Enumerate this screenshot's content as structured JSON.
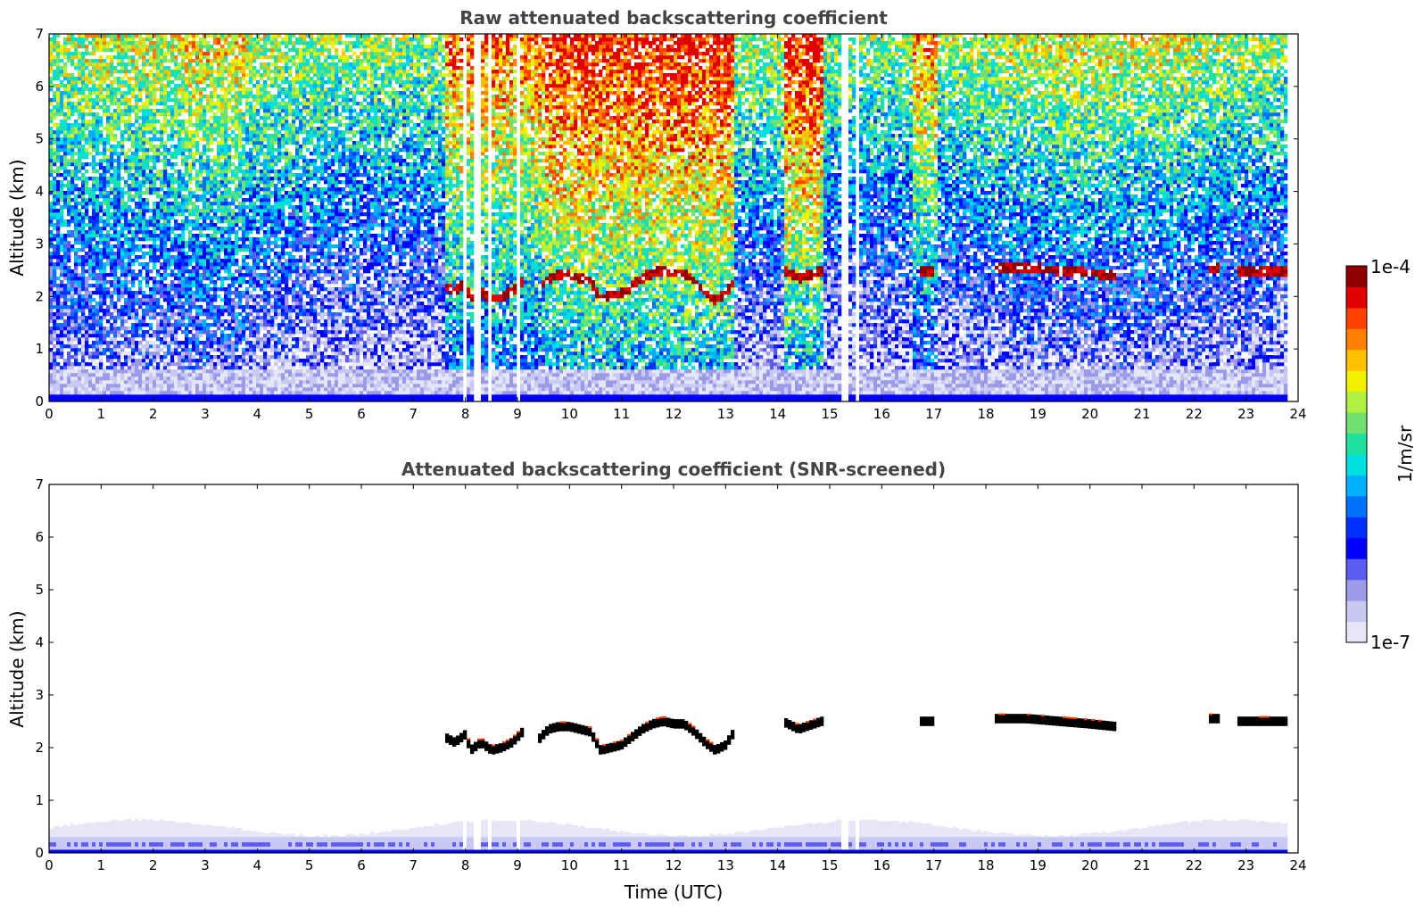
{
  "chart_data": [
    {
      "type": "heatmap",
      "title": "Raw attenuated backscattering coefficient",
      "xlabel": "",
      "ylabel": "Altitude (km)",
      "xlim": [
        0,
        24
      ],
      "ylim": [
        0,
        7
      ],
      "xticks": [
        "0",
        "1",
        "2",
        "3",
        "4",
        "5",
        "6",
        "7",
        "8",
        "9",
        "10",
        "11",
        "12",
        "13",
        "14",
        "15",
        "16",
        "17",
        "18",
        "19",
        "20",
        "21",
        "22",
        "23",
        "24"
      ],
      "yticks": [
        "0",
        "1",
        "2",
        "3",
        "4",
        "5",
        "6",
        "7"
      ],
      "data_end_hour": 23.8,
      "gaps_hours": [
        [
          7.72,
          7.78
        ],
        [
          7.95,
          8.0
        ],
        [
          8.15,
          8.28
        ],
        [
          8.4,
          8.53
        ],
        [
          9.0,
          9.05
        ],
        [
          14.85,
          14.9
        ],
        [
          15.2,
          15.35
        ],
        [
          15.5,
          15.6
        ]
      ],
      "cloud_layer": {
        "segments": [
          {
            "x": [
              7.6,
              7.8,
              8.0,
              8.1,
              8.3,
              8.5,
              8.7,
              8.9,
              9.1
            ],
            "y": [
              2.2,
              2.1,
              2.25,
              1.95,
              2.1,
              1.95,
              2.0,
              2.1,
              2.3
            ]
          },
          {
            "x": [
              9.4,
              9.6,
              9.8,
              10.0,
              10.2,
              10.4,
              10.6,
              10.8,
              11.0,
              11.2,
              11.4,
              11.6,
              11.8,
              12.0,
              12.2,
              12.4,
              12.6,
              12.8,
              13.0,
              13.2
            ],
            "y": [
              2.15,
              2.35,
              2.4,
              2.4,
              2.35,
              2.3,
              1.95,
              2.0,
              2.05,
              2.2,
              2.35,
              2.45,
              2.5,
              2.45,
              2.45,
              2.3,
              2.1,
              1.95,
              2.05,
              2.35
            ]
          },
          {
            "x": [
              14.1,
              14.4,
              14.7,
              14.85
            ],
            "y": [
              2.5,
              2.35,
              2.45,
              2.5
            ]
          },
          {
            "x": [
              16.7,
              17.0
            ],
            "y": [
              2.5,
              2.5
            ]
          },
          {
            "x": [
              18.2,
              18.8,
              19.4,
              20.0,
              20.5
            ],
            "y": [
              2.55,
              2.55,
              2.5,
              2.45,
              2.4
            ]
          },
          {
            "x": [
              22.3,
              22.5
            ],
            "y": [
              2.55,
              2.55
            ]
          },
          {
            "x": [
              22.8,
              23.8
            ],
            "y": [
              2.5,
              2.5
            ]
          }
        ]
      }
    },
    {
      "type": "heatmap",
      "title": "Attenuated backscattering coefficient (SNR-screened)",
      "xlabel": "Time (UTC)",
      "ylabel": "Altitude (km)",
      "xlim": [
        0,
        24
      ],
      "ylim": [
        0,
        7
      ],
      "xticks": [
        "0",
        "1",
        "2",
        "3",
        "4",
        "5",
        "6",
        "7",
        "8",
        "9",
        "10",
        "11",
        "12",
        "13",
        "14",
        "15",
        "16",
        "17",
        "18",
        "19",
        "20",
        "21",
        "22",
        "23",
        "24"
      ],
      "yticks": [
        "0",
        "1",
        "2",
        "3",
        "4",
        "5",
        "6",
        "7"
      ]
    }
  ],
  "colorbar": {
    "label": "1/m/sr",
    "max_label": "1e-4",
    "min_label": "1e-7",
    "scale": "log",
    "colormap": [
      "#e6e6f7",
      "#c8c8f2",
      "#9a9ae8",
      "#5c5cee",
      "#0000ff",
      "#0030ff",
      "#0070ff",
      "#00b0ff",
      "#00e0e0",
      "#20e0a0",
      "#70e070",
      "#b0f040",
      "#f0f000",
      "#ffc000",
      "#ff8000",
      "#ff4000",
      "#e00000",
      "#900000"
    ]
  }
}
